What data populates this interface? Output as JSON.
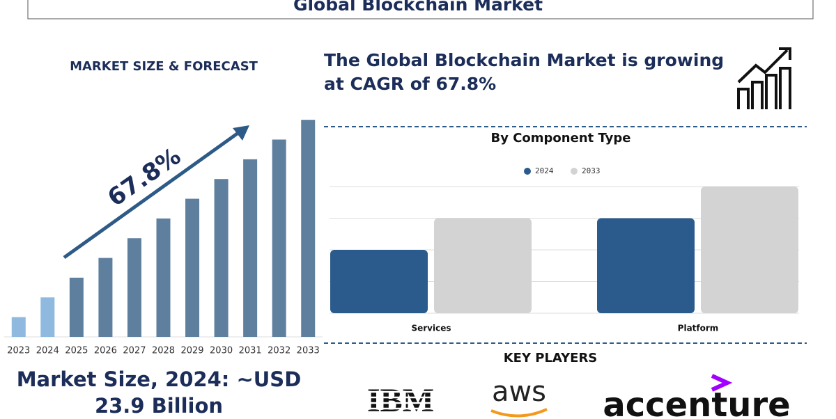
{
  "header": {
    "title": "Global Blockchain Market"
  },
  "forecast_heading": "MARKET SIZE & FORECAST",
  "headline": "The Global Blockchain Market is growing at CAGR of 67.8%",
  "market_size": "Market Size, 2024: ~USD 23.9 Billion",
  "key_players": {
    "title": "KEY PLAYERS",
    "names": [
      "IBM",
      "aws",
      "accenture"
    ]
  },
  "chart_data": [
    {
      "type": "bar",
      "categories": [
        "2023",
        "2024",
        "2025",
        "2026",
        "2027",
        "2028",
        "2029",
        "2030",
        "2031",
        "2032",
        "2033"
      ],
      "values": [
        9,
        18,
        27,
        36,
        45,
        54,
        63,
        72,
        81,
        90,
        99
      ],
      "colors": [
        "#8fb9df",
        "#8fb9df",
        "#5f7f9e",
        "#5f7f9e",
        "#5f7f9e",
        "#5f7f9e",
        "#5f7f9e",
        "#5f7f9e",
        "#5f7f9e",
        "#5f7f9e",
        "#5f7f9e"
      ],
      "ylim": [
        0,
        100
      ],
      "annotation": "67.8%"
    },
    {
      "type": "grouped-bar",
      "title": "By Component Type",
      "categories": [
        "Services",
        "Platform"
      ],
      "series": [
        {
          "name": "2024",
          "color": "#2a5b8c",
          "values": [
            2,
            3
          ]
        },
        {
          "name": "2033",
          "color": "#d3d3d3",
          "values": [
            3,
            4
          ]
        }
      ],
      "ylim": [
        0,
        4
      ],
      "yticks": [
        0,
        1,
        2,
        3,
        4
      ],
      "grid": true,
      "legend": "top"
    }
  ]
}
